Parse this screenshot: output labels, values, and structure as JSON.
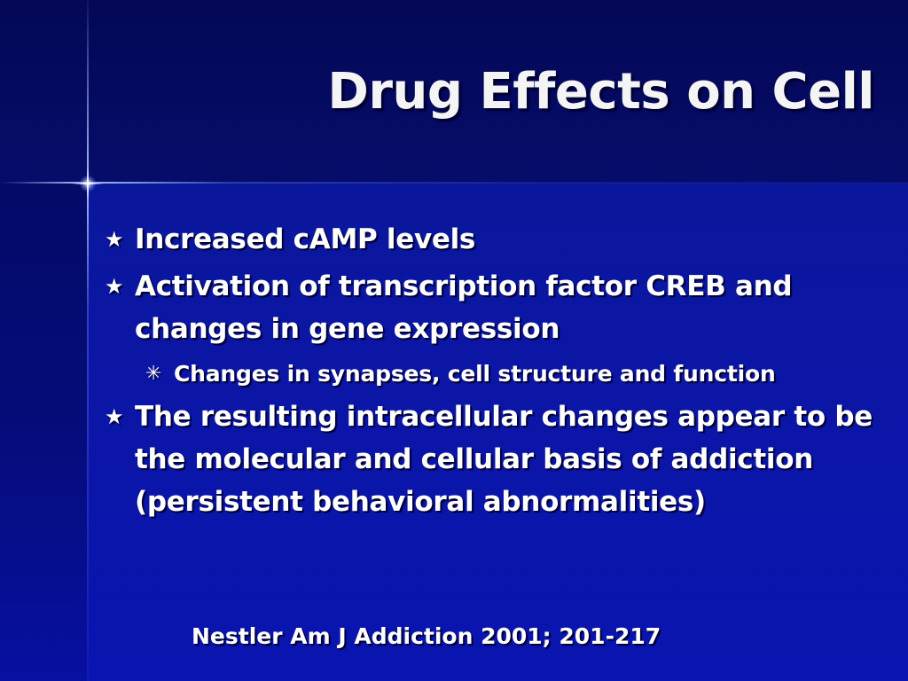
{
  "slide": {
    "title": "Drug Effects on Cell",
    "bullets": [
      {
        "text": "Increased cAMP levels",
        "icon": "star-bullet-icon"
      },
      {
        "text": "Activation of transcription factor CREB and changes in gene expression",
        "icon": "star-bullet-icon",
        "sub_bullets": [
          {
            "text": "Changes in synapses, cell structure and function",
            "icon": "asterisk-bullet-icon"
          }
        ]
      },
      {
        "text": "The resulting intracellular changes appear to be the molecular and cellular basis of addiction (persistent behavioral abnormalities)",
        "icon": "star-bullet-icon"
      }
    ],
    "citation": "Nestler Am J Addiction 2001; 201-217"
  },
  "theme": {
    "background": "#0b16a6",
    "title_band": "#060c6a",
    "text_color": "#ffffff"
  }
}
